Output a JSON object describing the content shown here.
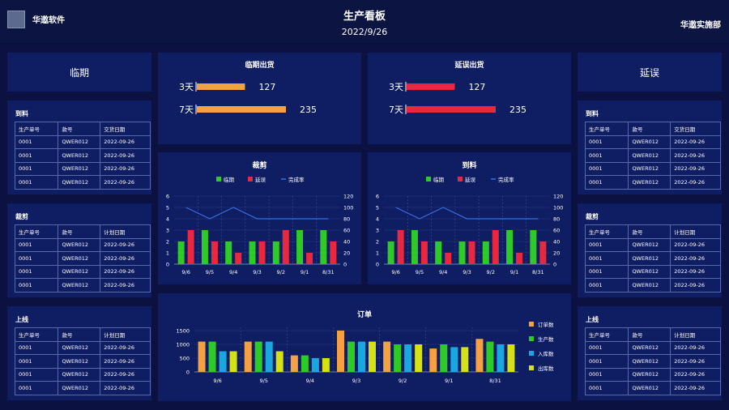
{
  "header": {
    "brand": "华遨软件",
    "title": "生产看板",
    "date": "2022/9/26",
    "department": "华遨实施部"
  },
  "left": {
    "label": "临期",
    "tables": [
      {
        "title": "到料",
        "columns": [
          "生产单号",
          "款号",
          "交货日期"
        ],
        "rows": [
          [
            "0001",
            "QWER012",
            "2022-09-26"
          ],
          [
            "0001",
            "QWER012",
            "2022-09-26"
          ],
          [
            "0001",
            "QWER012",
            "2022-09-26"
          ],
          [
            "0001",
            "QWER012",
            "2022-09-26"
          ]
        ]
      },
      {
        "title": "裁剪",
        "columns": [
          "生产单号",
          "款号",
          "计划日期"
        ],
        "rows": [
          [
            "0001",
            "QWER012",
            "2022-09-26"
          ],
          [
            "0001",
            "QWER012",
            "2022-09-26"
          ],
          [
            "0001",
            "QWER012",
            "2022-09-26"
          ],
          [
            "0001",
            "QWER012",
            "2022-09-26"
          ]
        ]
      },
      {
        "title": "上线",
        "columns": [
          "生产单号",
          "款号",
          "计划日期"
        ],
        "rows": [
          [
            "0001",
            "QWER012",
            "2022-09-26"
          ],
          [
            "0001",
            "QWER012",
            "2022-09-26"
          ],
          [
            "0001",
            "QWER012",
            "2022-09-26"
          ],
          [
            "0001",
            "QWER012",
            "2022-09-26"
          ]
        ]
      }
    ]
  },
  "right": {
    "label": "延误",
    "tables": [
      {
        "title": "到料",
        "columns": [
          "生产单号",
          "款号",
          "交货日期"
        ],
        "rows": [
          [
            "0001",
            "QWER012",
            "2022-09-26"
          ],
          [
            "0001",
            "QWER012",
            "2022-09-26"
          ],
          [
            "0001",
            "QWER012",
            "2022-09-26"
          ],
          [
            "0001",
            "QWER012",
            "2022-09-26"
          ]
        ]
      },
      {
        "title": "裁剪",
        "columns": [
          "生产单号",
          "款号",
          "计划日期"
        ],
        "rows": [
          [
            "0001",
            "QWER012",
            "2022-09-26"
          ],
          [
            "0001",
            "QWER012",
            "2022-09-26"
          ],
          [
            "0001",
            "QWER012",
            "2022-09-26"
          ],
          [
            "0001",
            "QWER012",
            "2022-09-26"
          ]
        ]
      },
      {
        "title": "上线",
        "columns": [
          "生产单号",
          "款号",
          "计划日期"
        ],
        "rows": [
          [
            "0001",
            "QWER012",
            "2022-09-26"
          ],
          [
            "0001",
            "QWER012",
            "2022-09-26"
          ],
          [
            "0001",
            "QWER012",
            "2022-09-26"
          ],
          [
            "0001",
            "QWER012",
            "2022-09-26"
          ]
        ]
      }
    ]
  },
  "chart_data": [
    {
      "id": "due-shipment",
      "type": "bar",
      "title": "临期出货",
      "orientation": "horizontal",
      "categories": [
        "3天",
        "7天"
      ],
      "values": [
        127,
        235
      ],
      "color": "#f5a043"
    },
    {
      "id": "delayed-shipment",
      "type": "bar",
      "title": "延误出货",
      "orientation": "horizontal",
      "categories": [
        "3天",
        "7天"
      ],
      "values": [
        127,
        235
      ],
      "color": "#e8283f"
    },
    {
      "id": "cutting",
      "type": "bar",
      "title": "裁剪",
      "categories": [
        "9/6",
        "9/5",
        "9/4",
        "9/3",
        "9/2",
        "9/1",
        "8/31"
      ],
      "series": [
        {
          "name": "临期",
          "values": [
            2,
            3,
            2,
            2,
            2,
            3,
            3
          ],
          "color": "#2ecb28"
        },
        {
          "name": "延误",
          "values": [
            3,
            2,
            1,
            2,
            3,
            1,
            2
          ],
          "color": "#e8283f"
        },
        {
          "name": "完成率",
          "type": "line",
          "axis": "right",
          "values": [
            100,
            80,
            100,
            80,
            80,
            80,
            80
          ],
          "color": "#3a6fe0"
        }
      ],
      "ylim": [
        0,
        6
      ],
      "y2lim": [
        0,
        120
      ]
    },
    {
      "id": "material",
      "type": "bar",
      "title": "到料",
      "categories": [
        "9/6",
        "9/5",
        "9/4",
        "9/3",
        "9/2",
        "9/1",
        "8/31"
      ],
      "series": [
        {
          "name": "临期",
          "values": [
            2,
            3,
            2,
            2,
            2,
            3,
            3
          ],
          "color": "#2ecb28"
        },
        {
          "name": "延误",
          "values": [
            3,
            2,
            1,
            2,
            3,
            1,
            2
          ],
          "color": "#e8283f"
        },
        {
          "name": "完成率",
          "type": "line",
          "axis": "right",
          "values": [
            100,
            80,
            100,
            80,
            80,
            80,
            80
          ],
          "color": "#3a6fe0"
        }
      ],
      "ylim": [
        0,
        6
      ],
      "y2lim": [
        0,
        120
      ]
    },
    {
      "id": "orders",
      "type": "bar",
      "title": "订单",
      "categories": [
        "9/6",
        "9/5",
        "9/4",
        "9/3",
        "9/2",
        "9/1",
        "8/31"
      ],
      "series": [
        {
          "name": "订单数",
          "values": [
            1100,
            1100,
            600,
            1500,
            1100,
            850,
            1200
          ],
          "color": "#f5a043"
        },
        {
          "name": "生产数",
          "values": [
            1100,
            1100,
            600,
            1100,
            1000,
            1000,
            1100
          ],
          "color": "#2ecb28"
        },
        {
          "name": "入库数",
          "values": [
            750,
            1100,
            500,
            1100,
            1000,
            900,
            1000
          ],
          "color": "#1aa7df"
        },
        {
          "name": "出库数",
          "values": [
            750,
            750,
            500,
            1100,
            1000,
            900,
            1000
          ],
          "color": "#d6e017"
        }
      ],
      "ylim": [
        0,
        1500
      ],
      "legend": "right"
    }
  ]
}
